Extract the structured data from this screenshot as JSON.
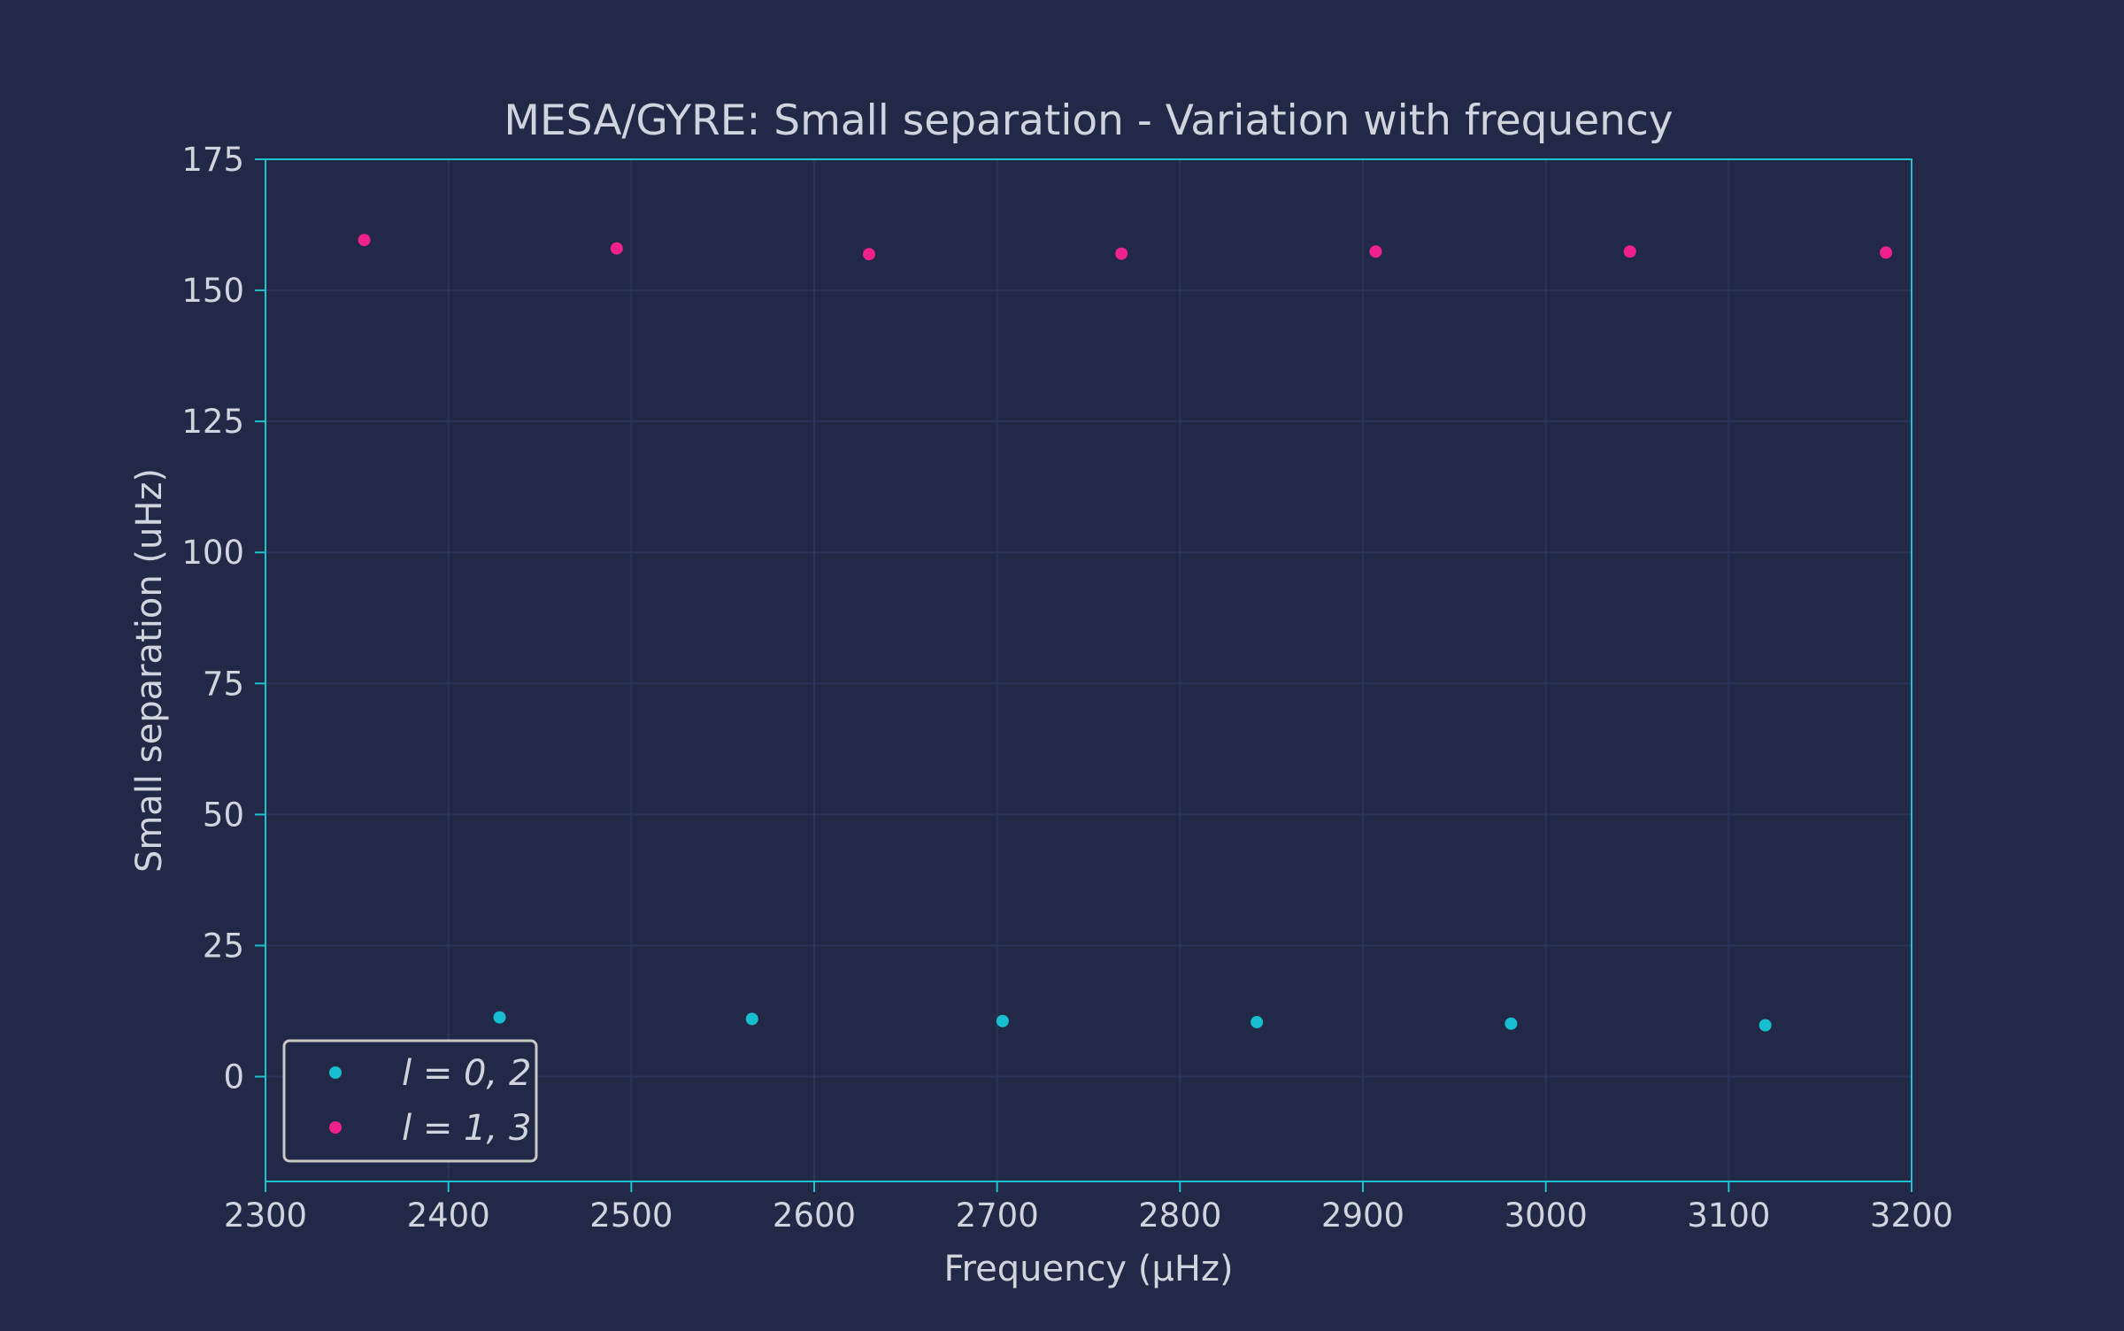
{
  "colors": {
    "background": "#212946",
    "grid": "#2A3459",
    "spine": "#1FC1CF",
    "text": "#D0D4DF",
    "series_a": "#17BECF",
    "series_b": "#F0208C",
    "legend_border": "#C8C8C8"
  },
  "chart_data": {
    "type": "scatter",
    "title": "MESA/GYRE: Small separation - Variation with frequency",
    "xlabel": "Frequency (μHz)",
    "ylabel": "Small separation (uHz)",
    "xlim": [
      2300,
      3200
    ],
    "ylim": [
      -20,
      175
    ],
    "xticks": [
      2300,
      2400,
      2500,
      2600,
      2700,
      2800,
      2900,
      3000,
      3100,
      3200
    ],
    "yticks": [
      0,
      25,
      50,
      75,
      100,
      125,
      150,
      175
    ],
    "grid": true,
    "legend_position": "lower-left",
    "series": [
      {
        "name": "l = 0, 2",
        "color": "#17BECF",
        "x": [
          2428,
          2566,
          2703,
          2842,
          2981,
          3120
        ],
        "y": [
          11.3,
          11.0,
          10.6,
          10.4,
          10.1,
          9.8
        ]
      },
      {
        "name": "l = 1, 3",
        "color": "#F0208C",
        "x": [
          2354,
          2492,
          2630,
          2768,
          2907,
          3046,
          3186
        ],
        "y": [
          159.6,
          158.0,
          156.9,
          157.0,
          157.4,
          157.4,
          157.2
        ]
      }
    ]
  }
}
